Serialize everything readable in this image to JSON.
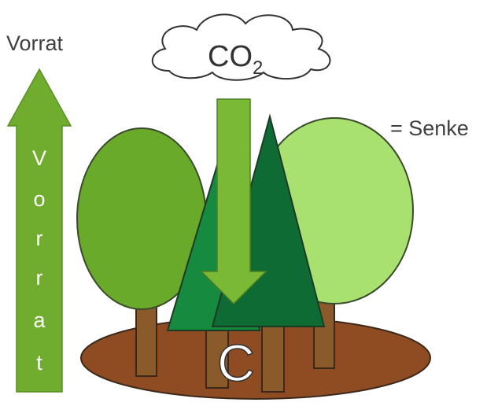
{
  "labels": {
    "stock_title": "Vorrat",
    "co2_main": "CO",
    "co2_sub": "2",
    "sink": "= Senke",
    "carbon": "C",
    "stock_letters": [
      "V",
      "o",
      "r",
      "r",
      "a",
      "t"
    ]
  }
}
